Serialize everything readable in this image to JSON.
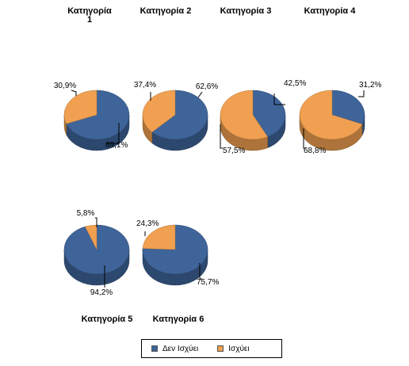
{
  "chart_data": {
    "type": "pie",
    "series": [
      {
        "name": "Δεν Ισχύει",
        "color": "#3E6499"
      },
      {
        "name": "Ισχύει",
        "color": "#F0A050"
      }
    ],
    "charts": [
      {
        "title": "Κατηγορία 1",
        "values": [
          69.1,
          30.9
        ],
        "labels": [
          "69,1%",
          "30,9%"
        ]
      },
      {
        "title": "Κατηγορία 2",
        "values": [
          62.6,
          37.4
        ],
        "labels": [
          "62,6%",
          "37,4%"
        ]
      },
      {
        "title": "Κατηγορία 3",
        "values": [
          42.5,
          57.5
        ],
        "labels": [
          "42,5%",
          "57,5%"
        ]
      },
      {
        "title": "Κατηγορία 4",
        "values": [
          31.2,
          68.8
        ],
        "labels": [
          "31,2%",
          "68,8%"
        ]
      },
      {
        "title": "Κατηγορία 5",
        "values": [
          94.2,
          5.8
        ],
        "labels": [
          "94,2%",
          "5,8%"
        ]
      },
      {
        "title": "Κατηγορία 6",
        "values": [
          75.7,
          24.3
        ],
        "labels": [
          "75,7%",
          "24,3%"
        ]
      }
    ],
    "legend_position": "bottom"
  }
}
